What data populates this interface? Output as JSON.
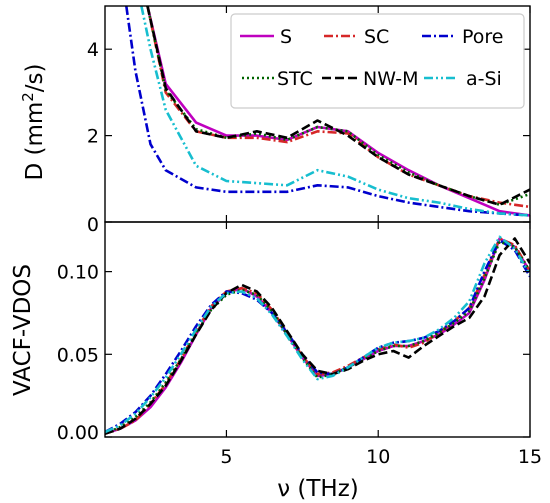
{
  "chart_data": [
    {
      "type": "line",
      "ylabel": "D (mm²/s)",
      "ylabel_base": "D (mm",
      "ylabel_sup": "2",
      "ylabel_tail": "/s)",
      "xlim": [
        1,
        15
      ],
      "ylim": [
        0,
        5
      ],
      "yticks": [
        0,
        2,
        4
      ],
      "ytick_labels": [
        "0",
        "2",
        "4"
      ],
      "legend_position": "top-right",
      "series": [
        {
          "name": "S",
          "color": "#bf00bf",
          "dash": "solid",
          "x": [
            2.4,
            3,
            4,
            5,
            6,
            7,
            8,
            9,
            10,
            11,
            12,
            13,
            14,
            15
          ],
          "y": [
            5.0,
            3.2,
            2.3,
            2.0,
            2.0,
            1.9,
            2.2,
            2.1,
            1.6,
            1.2,
            0.85,
            0.55,
            0.25,
            0.15
          ]
        },
        {
          "name": "SC",
          "color": "#d62728",
          "dash": "dashdot",
          "x": [
            2.4,
            3,
            4,
            5,
            6,
            7,
            8,
            9,
            10,
            11,
            12,
            13,
            14,
            15
          ],
          "y": [
            5.0,
            3.0,
            2.1,
            1.95,
            1.95,
            1.85,
            2.1,
            2.05,
            1.5,
            1.1,
            0.85,
            0.6,
            0.45,
            0.35
          ]
        },
        {
          "name": "Pore",
          "color": "#0000cd",
          "dash": "dashdot",
          "x": [
            1.7,
            2,
            2.5,
            3,
            4,
            5,
            6,
            7,
            8,
            9,
            10,
            11,
            12,
            13,
            14,
            15
          ],
          "y": [
            5.0,
            3.5,
            1.8,
            1.2,
            0.8,
            0.7,
            0.7,
            0.7,
            0.85,
            0.8,
            0.6,
            0.45,
            0.35,
            0.25,
            0.2,
            0.15
          ]
        },
        {
          "name": "STC",
          "color": "#006400",
          "dash": "dotted",
          "x": [
            2.4,
            3,
            4,
            5,
            6,
            7,
            8,
            9,
            10,
            11,
            12,
            13,
            14,
            15
          ],
          "y": [
            5.0,
            3.05,
            2.15,
            1.95,
            2.05,
            1.9,
            2.2,
            2.1,
            1.55,
            1.15,
            0.85,
            0.6,
            0.4,
            0.65
          ]
        },
        {
          "name": "NW-M",
          "color": "#000000",
          "dash": "dashed",
          "x": [
            2.4,
            3,
            4,
            5,
            6,
            7,
            8,
            9,
            10,
            11,
            12,
            13,
            14,
            15
          ],
          "y": [
            5.0,
            3.1,
            2.1,
            1.95,
            2.1,
            1.95,
            2.35,
            2.0,
            1.5,
            1.1,
            0.85,
            0.6,
            0.4,
            0.75
          ]
        },
        {
          "name": "a-Si",
          "color": "#17becf",
          "dash": "dashdotdot",
          "x": [
            2.2,
            2.5,
            3,
            4,
            5,
            6,
            7,
            8,
            9,
            10,
            11,
            12,
            13,
            14,
            15
          ],
          "y": [
            5.0,
            4.0,
            2.6,
            1.3,
            0.95,
            0.9,
            0.85,
            1.2,
            1.05,
            0.75,
            0.55,
            0.45,
            0.3,
            0.2,
            0.15
          ]
        }
      ],
      "legend_rows": [
        [
          "S",
          "SC",
          "Pore"
        ],
        [
          "STC",
          "NW-M",
          "a-Si"
        ]
      ]
    },
    {
      "type": "line",
      "ylabel": "VACF-VDOS",
      "xlabel": "ν (THz)",
      "xlim": [
        1,
        15
      ],
      "ylim": [
        0,
        0.13
      ],
      "xticks": [
        5,
        10,
        15
      ],
      "xtick_labels": [
        "5",
        "10",
        "15"
      ],
      "yticks": [
        0,
        0.05,
        0.1
      ],
      "ytick_labels": [
        "0.00",
        "0.05",
        "0.10"
      ],
      "series": [
        {
          "name": "S",
          "color": "#bf00bf",
          "dash": "solid",
          "x": [
            1,
            1.5,
            2,
            2.5,
            3,
            3.5,
            4,
            4.5,
            5,
            5.5,
            6,
            6.5,
            7,
            7.5,
            8,
            8.5,
            9,
            9.5,
            10,
            10.5,
            11,
            11.5,
            12,
            12.5,
            13,
            13.5,
            14,
            14.5,
            15
          ],
          "y": [
            0.002,
            0.005,
            0.01,
            0.018,
            0.03,
            0.045,
            0.062,
            0.078,
            0.087,
            0.09,
            0.085,
            0.075,
            0.062,
            0.048,
            0.037,
            0.038,
            0.042,
            0.047,
            0.052,
            0.055,
            0.055,
            0.058,
            0.062,
            0.068,
            0.075,
            0.095,
            0.12,
            0.115,
            0.1
          ]
        },
        {
          "name": "SC",
          "color": "#d62728",
          "dash": "dashdot",
          "x": [
            1,
            1.5,
            2,
            2.5,
            3,
            3.5,
            4,
            4.5,
            5,
            5.5,
            6,
            6.5,
            7,
            7.5,
            8,
            8.5,
            9,
            9.5,
            10,
            10.5,
            11,
            11.5,
            12,
            12.5,
            13,
            13.5,
            14,
            14.5,
            15
          ],
          "y": [
            0.002,
            0.005,
            0.01,
            0.02,
            0.032,
            0.047,
            0.064,
            0.079,
            0.088,
            0.09,
            0.087,
            0.077,
            0.063,
            0.049,
            0.038,
            0.039,
            0.043,
            0.048,
            0.053,
            0.056,
            0.054,
            0.057,
            0.063,
            0.07,
            0.078,
            0.098,
            0.12,
            0.116,
            0.1
          ]
        },
        {
          "name": "Pore",
          "color": "#0000cd",
          "dash": "dashdot",
          "x": [
            1,
            1.5,
            2,
            2.5,
            3,
            3.5,
            4,
            4.5,
            5,
            5.5,
            6,
            6.5,
            7,
            7.5,
            8,
            8.5,
            9,
            9.5,
            10,
            10.5,
            11,
            11.5,
            12,
            12.5,
            13,
            13.5,
            14,
            14.5,
            15
          ],
          "y": [
            0.003,
            0.008,
            0.015,
            0.025,
            0.038,
            0.052,
            0.067,
            0.08,
            0.088,
            0.087,
            0.083,
            0.075,
            0.063,
            0.05,
            0.039,
            0.038,
            0.042,
            0.048,
            0.054,
            0.057,
            0.058,
            0.06,
            0.064,
            0.07,
            0.078,
            0.1,
            0.119,
            0.113,
            0.097
          ]
        },
        {
          "name": "STC",
          "color": "#006400",
          "dash": "dotted",
          "x": [
            1,
            1.5,
            2,
            2.5,
            3,
            3.5,
            4,
            4.5,
            5,
            5.5,
            6,
            6.5,
            7,
            7.5,
            8,
            8.5,
            9,
            9.5,
            10,
            10.5,
            11,
            11.5,
            12,
            12.5,
            13,
            13.5,
            14,
            14.5,
            15
          ],
          "y": [
            0.002,
            0.006,
            0.012,
            0.021,
            0.033,
            0.047,
            0.063,
            0.077,
            0.086,
            0.089,
            0.086,
            0.076,
            0.062,
            0.048,
            0.036,
            0.038,
            0.042,
            0.047,
            0.052,
            0.055,
            0.055,
            0.058,
            0.063,
            0.069,
            0.076,
            0.096,
            0.118,
            0.115,
            0.1
          ]
        },
        {
          "name": "NW-M",
          "color": "#000000",
          "dash": "dashed",
          "x": [
            1,
            1.5,
            2,
            2.5,
            3,
            3.5,
            4,
            4.5,
            5,
            5.5,
            6,
            6.5,
            7,
            7.5,
            8,
            8.5,
            9,
            9.5,
            10,
            10.5,
            11,
            11.5,
            12,
            12.5,
            13,
            13.5,
            14,
            14.5,
            15
          ],
          "y": [
            0.002,
            0.005,
            0.011,
            0.02,
            0.031,
            0.046,
            0.062,
            0.077,
            0.087,
            0.092,
            0.088,
            0.078,
            0.064,
            0.05,
            0.04,
            0.038,
            0.041,
            0.046,
            0.05,
            0.052,
            0.048,
            0.055,
            0.061,
            0.067,
            0.072,
            0.085,
            0.11,
            0.12,
            0.105
          ]
        },
        {
          "name": "a-Si",
          "color": "#17becf",
          "dash": "dashdotdot",
          "x": [
            1,
            1.5,
            2,
            2.5,
            3,
            3.5,
            4,
            4.5,
            5,
            5.5,
            6,
            6.5,
            7,
            7.5,
            8,
            8.5,
            9,
            9.5,
            10,
            10.5,
            11,
            11.5,
            12,
            12.5,
            13,
            13.5,
            14,
            14.5,
            15
          ],
          "y": [
            0.003,
            0.007,
            0.014,
            0.024,
            0.036,
            0.05,
            0.065,
            0.079,
            0.087,
            0.088,
            0.084,
            0.074,
            0.061,
            0.047,
            0.035,
            0.037,
            0.042,
            0.048,
            0.054,
            0.057,
            0.058,
            0.06,
            0.065,
            0.072,
            0.082,
            0.105,
            0.121,
            0.114,
            0.098
          ]
        }
      ]
    }
  ]
}
